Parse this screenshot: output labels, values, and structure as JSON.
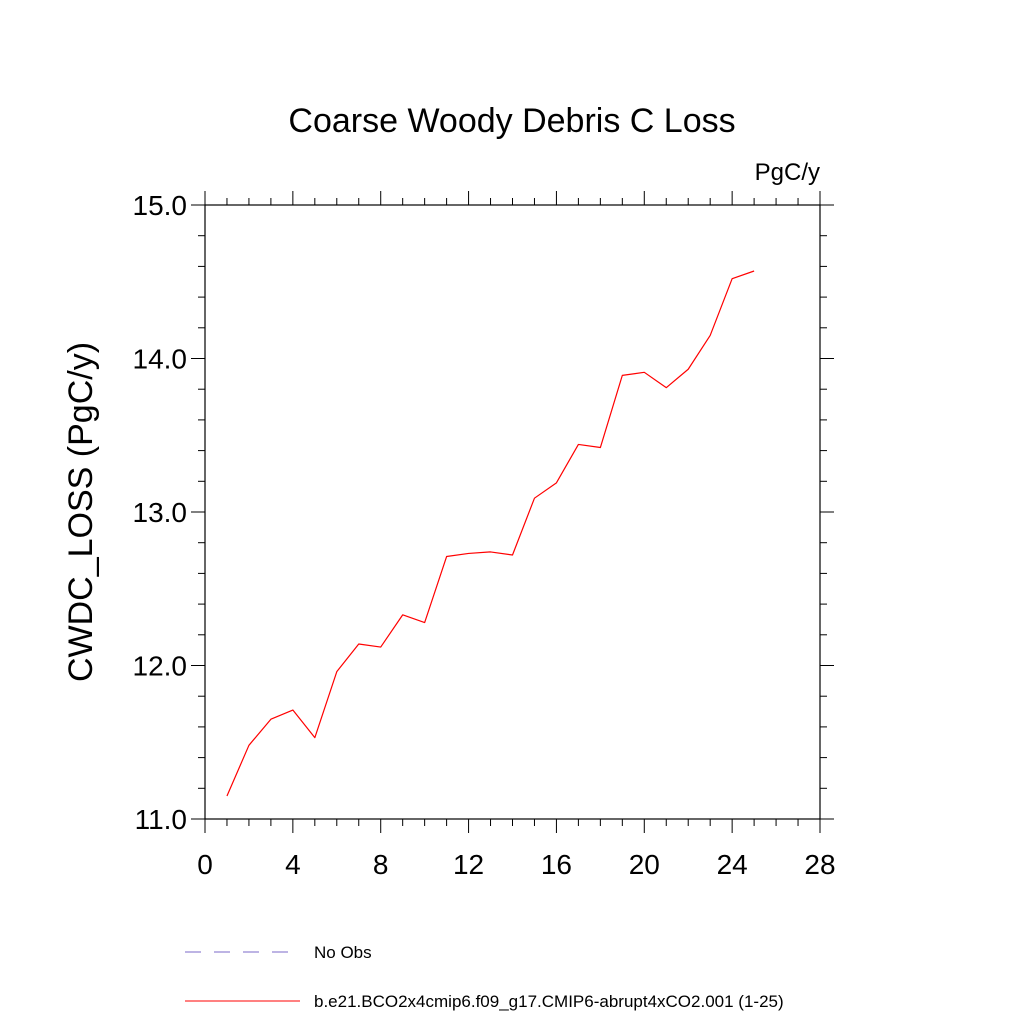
{
  "chart_data": {
    "type": "line",
    "title": "Coarse Woody Debris C Loss",
    "units_label": "PgC/y",
    "ylabel": "CWDC_LOSS  (PgC/y)",
    "xlabel": "",
    "xlim": [
      0,
      28
    ],
    "ylim": [
      11.0,
      15.0
    ],
    "x_ticks": [
      0,
      4,
      8,
      12,
      16,
      20,
      24,
      28
    ],
    "x_tick_labels": [
      "0",
      "4",
      "8",
      "12",
      "16",
      "20",
      "24",
      "28"
    ],
    "y_ticks": [
      11.0,
      12.0,
      13.0,
      14.0,
      15.0
    ],
    "y_tick_labels": [
      "11.0",
      "12.0",
      "13.0",
      "14.0",
      "15.0"
    ],
    "grid": false,
    "series": [
      {
        "name": "b.e21.BCO2x4cmip6.f09_g17.CMIP6-abrupt4xCO2.001 (1-25)",
        "color": "#ff0000",
        "style": "solid",
        "x": [
          1,
          2,
          3,
          4,
          5,
          6,
          7,
          8,
          9,
          10,
          11,
          12,
          13,
          14,
          15,
          16,
          17,
          18,
          19,
          20,
          21,
          22,
          23,
          24,
          25
        ],
        "y": [
          11.15,
          11.48,
          11.65,
          11.71,
          11.53,
          11.96,
          12.14,
          12.12,
          12.33,
          12.28,
          12.71,
          12.73,
          12.74,
          12.72,
          13.09,
          13.19,
          13.44,
          13.42,
          13.89,
          13.91,
          13.81,
          13.93,
          14.15,
          14.52,
          14.57
        ]
      }
    ],
    "legend": {
      "placement": "bottom",
      "entries": [
        {
          "label": "No Obs",
          "color": "#7b68c8",
          "style": "dashed"
        },
        {
          "label": "b.e21.BCO2x4cmip6.f09_g17.CMIP6-abrupt4xCO2.001 (1-25)",
          "color": "#ff0000",
          "style": "solid"
        }
      ]
    }
  }
}
